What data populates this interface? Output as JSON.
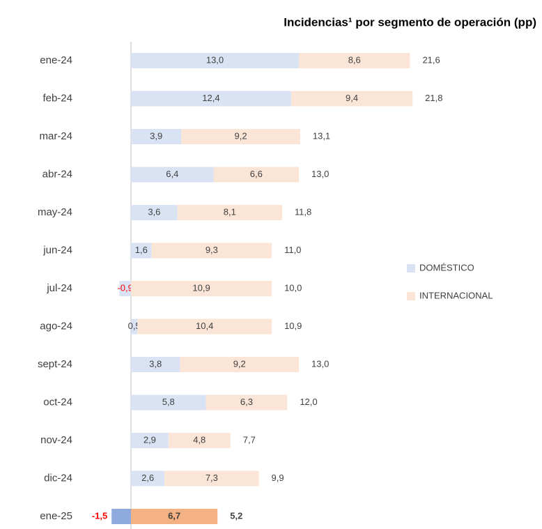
{
  "chart_data": {
    "type": "stacked_barh",
    "title": "Incidencias¹ por segmento de operación (pp)",
    "categories": [
      "ene-24",
      "feb-24",
      "mar-24",
      "abr-24",
      "may-24",
      "jun-24",
      "jul-24",
      "ago-24",
      "sept-24",
      "oct-24",
      "nov-24",
      "dic-24",
      "ene-25"
    ],
    "series": [
      {
        "name": "DOMÉSTICO",
        "color": "#dae3f3",
        "highlight_color": "#8faadc",
        "values": [
          13.0,
          12.4,
          3.9,
          6.4,
          3.6,
          1.6,
          -0.9,
          0.5,
          3.8,
          5.8,
          2.9,
          2.6,
          -1.5
        ],
        "value_labels": [
          "13,0",
          "12,4",
          "3,9",
          "6,4",
          "3,6",
          "1,6",
          "-0,9",
          "0,5",
          "3,8",
          "5,8",
          "2,9",
          "2,6",
          "-1,5"
        ]
      },
      {
        "name": "INTERNACIONAL",
        "color": "#fbe5d6",
        "highlight_color": "#f4b183",
        "values": [
          8.6,
          9.4,
          9.2,
          6.6,
          8.1,
          9.3,
          10.9,
          10.4,
          9.2,
          6.3,
          4.8,
          7.3,
          6.7
        ],
        "value_labels": [
          "8,6",
          "9,4",
          "9,2",
          "6,6",
          "8,1",
          "9,3",
          "10,9",
          "10,4",
          "9,2",
          "6,3",
          "4,8",
          "7,3",
          "6,7"
        ]
      }
    ],
    "totals": [
      21.6,
      21.8,
      13.1,
      13.0,
      11.8,
      11.0,
      10.0,
      10.9,
      13.0,
      12.0,
      7.7,
      9.9,
      5.2
    ],
    "totals_labels": [
      "21,6",
      "21,8",
      "13,1",
      "13,0",
      "11,8",
      "11,0",
      "10,0",
      "10,9",
      "13,0",
      "12,0",
      "7,7",
      "9,9",
      "5,2"
    ],
    "highlight_last": true,
    "negative_label_color": "#ff0000",
    "legend": "right"
  }
}
